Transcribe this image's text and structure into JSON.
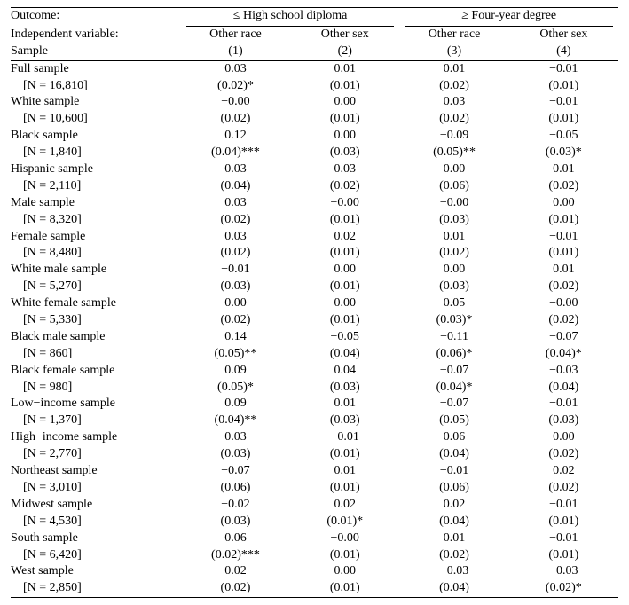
{
  "header": {
    "outcome_label": "Outcome:",
    "iv_label": "Independent variable:",
    "sample_label": "Sample",
    "group1": "≤ High school diploma",
    "group2": "≥ Four-year degree",
    "col1": "Other race",
    "col2": "Other sex",
    "col3": "Other race",
    "col4": "Other sex",
    "num1": "(1)",
    "num2": "(2)",
    "num3": "(3)",
    "num4": "(4)"
  },
  "rows": [
    {
      "label": "Full sample",
      "n": "[N = 16,810]",
      "c1": "0.03",
      "s1": "(0.02)*",
      "c2": "0.01",
      "s2": "(0.01)",
      "c3": "0.01",
      "s3": "(0.02)",
      "c4": "−0.01",
      "s4": "(0.01)"
    },
    {
      "label": "White sample",
      "n": "[N = 10,600]",
      "c1": "−0.00",
      "s1": "(0.02)",
      "c2": "0.00",
      "s2": "(0.01)",
      "c3": "0.03",
      "s3": "(0.02)",
      "c4": "−0.01",
      "s4": "(0.01)"
    },
    {
      "label": "Black sample",
      "n": "[N = 1,840]",
      "c1": "0.12",
      "s1": "(0.04)***",
      "c2": "0.00",
      "s2": "(0.03)",
      "c3": "−0.09",
      "s3": "(0.05)**",
      "c4": "−0.05",
      "s4": "(0.03)*"
    },
    {
      "label": "Hispanic sample",
      "n": "[N = 2,110]",
      "c1": "0.03",
      "s1": "(0.04)",
      "c2": "0.03",
      "s2": "(0.02)",
      "c3": "0.00",
      "s3": "(0.06)",
      "c4": "0.01",
      "s4": "(0.02)"
    },
    {
      "label": "Male sample",
      "n": "[N = 8,320]",
      "c1": "0.03",
      "s1": "(0.02)",
      "c2": "−0.00",
      "s2": "(0.01)",
      "c3": "−0.00",
      "s3": "(0.03)",
      "c4": "0.00",
      "s4": "(0.01)"
    },
    {
      "label": "Female sample",
      "n": "[N = 8,480]",
      "c1": "0.03",
      "s1": "(0.02)",
      "c2": "0.02",
      "s2": "(0.01)",
      "c3": "0.01",
      "s3": "(0.02)",
      "c4": "−0.01",
      "s4": "(0.01)"
    },
    {
      "label": "White male sample",
      "n": "[N = 5,270]",
      "c1": "−0.01",
      "s1": "(0.03)",
      "c2": "0.00",
      "s2": "(0.01)",
      "c3": "0.00",
      "s3": "(0.03)",
      "c4": "0.01",
      "s4": "(0.02)"
    },
    {
      "label": "White female sample",
      "n": "[N = 5,330]",
      "c1": "0.00",
      "s1": "(0.02)",
      "c2": "0.00",
      "s2": "(0.01)",
      "c3": "0.05",
      "s3": "(0.03)*",
      "c4": "−0.00",
      "s4": "(0.02)"
    },
    {
      "label": "Black male sample",
      "n": "[N = 860]",
      "c1": "0.14",
      "s1": "(0.05)**",
      "c2": "−0.05",
      "s2": "(0.04)",
      "c3": "−0.11",
      "s3": "(0.06)*",
      "c4": "−0.07",
      "s4": "(0.04)*"
    },
    {
      "label": "Black female sample",
      "n": "[N = 980]",
      "c1": "0.09",
      "s1": "(0.05)*",
      "c2": "0.04",
      "s2": "(0.03)",
      "c3": "−0.07",
      "s3": "(0.04)*",
      "c4": "−0.03",
      "s4": "(0.04)"
    },
    {
      "label": "Low−income sample",
      "n": "[N = 1,370]",
      "c1": "0.09",
      "s1": "(0.04)**",
      "c2": "0.01",
      "s2": "(0.03)",
      "c3": "−0.07",
      "s3": "(0.05)",
      "c4": "−0.01",
      "s4": "(0.03)"
    },
    {
      "label": "High−income sample",
      "n": "[N = 2,770]",
      "c1": "0.03",
      "s1": "(0.03)",
      "c2": "−0.01",
      "s2": "(0.01)",
      "c3": "0.06",
      "s3": "(0.04)",
      "c4": "0.00",
      "s4": "(0.02)"
    },
    {
      "label": "Northeast sample",
      "n": "[N = 3,010]",
      "c1": "−0.07",
      "s1": "(0.06)",
      "c2": "0.01",
      "s2": "(0.01)",
      "c3": "−0.01",
      "s3": "(0.06)",
      "c4": "0.02",
      "s4": "(0.02)"
    },
    {
      "label": "Midwest sample",
      "n": "[N = 4,530]",
      "c1": "−0.02",
      "s1": "(0.03)",
      "c2": "0.02",
      "s2": "(0.01)*",
      "c3": "0.02",
      "s3": "(0.04)",
      "c4": "−0.01",
      "s4": "(0.01)"
    },
    {
      "label": "South sample",
      "n": "[N = 6,420]",
      "c1": "0.06",
      "s1": "(0.02)***",
      "c2": "−0.00",
      "s2": "(0.01)",
      "c3": "0.01",
      "s3": "(0.02)",
      "c4": "−0.01",
      "s4": "(0.01)"
    },
    {
      "label": "West sample",
      "n": "[N = 2,850]",
      "c1": "0.02",
      "s1": "(0.02)",
      "c2": "0.00",
      "s2": "(0.01)",
      "c3": "−0.03",
      "s3": "(0.04)",
      "c4": "−0.03",
      "s4": "(0.02)*"
    }
  ],
  "styles": {
    "font_family": "Times New Roman",
    "font_size_pt": 11,
    "text_color": "#000000",
    "background_color": "#ffffff",
    "rule_color": "#000000",
    "col_widths_pct": [
      28,
      18,
      18,
      18,
      18
    ]
  }
}
